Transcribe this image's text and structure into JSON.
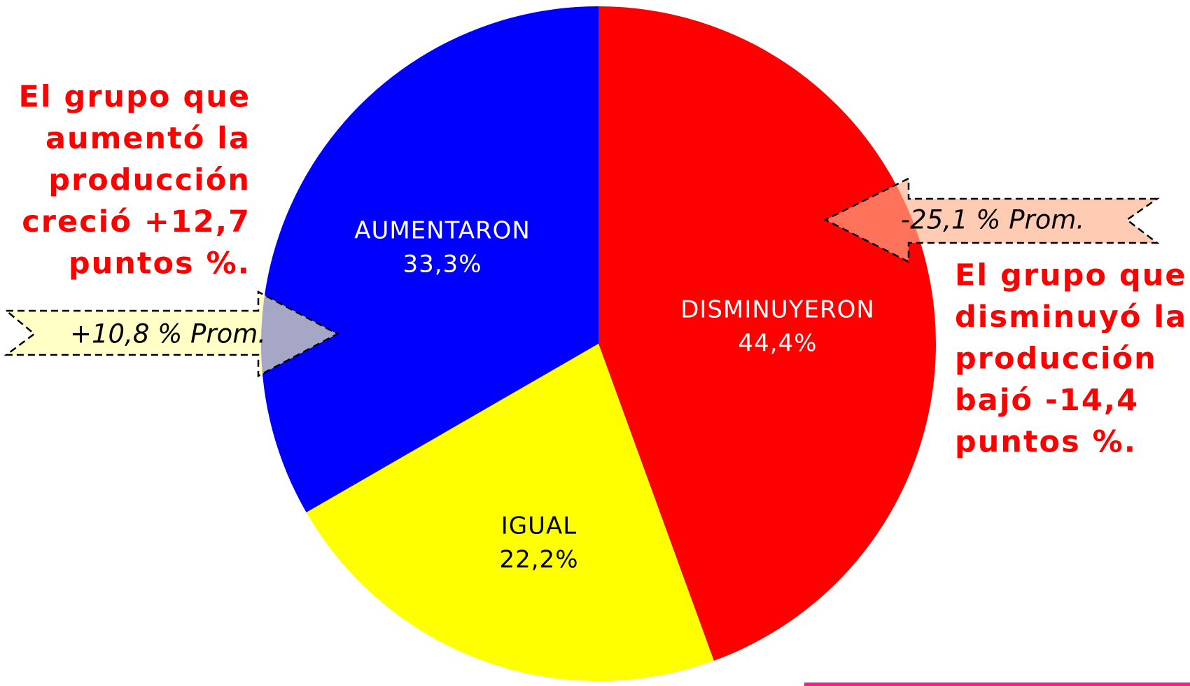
{
  "chart_data": {
    "type": "pie",
    "categories": [
      "DISMINUYERON",
      "IGUAL",
      "AUMENTARON"
    ],
    "values": [
      44.4,
      22.2,
      33.3
    ],
    "value_labels": [
      "44,4%",
      "22,2%",
      "33,3%"
    ],
    "colors": [
      "#ff0000",
      "#ffff00",
      "#0000ff"
    ],
    "annotations": [
      {
        "lines": [
          "El grupo que",
          "aumentó la",
          "producción",
          "creció +12,7",
          "puntos %."
        ]
      },
      {
        "lines": [
          "El grupo que",
          "disminuyó la",
          "producción",
          "bajó -14,4",
          "puntos %."
        ]
      }
    ],
    "callouts": [
      "+10,8 % Prom.",
      "-25,1 % Prom."
    ]
  }
}
